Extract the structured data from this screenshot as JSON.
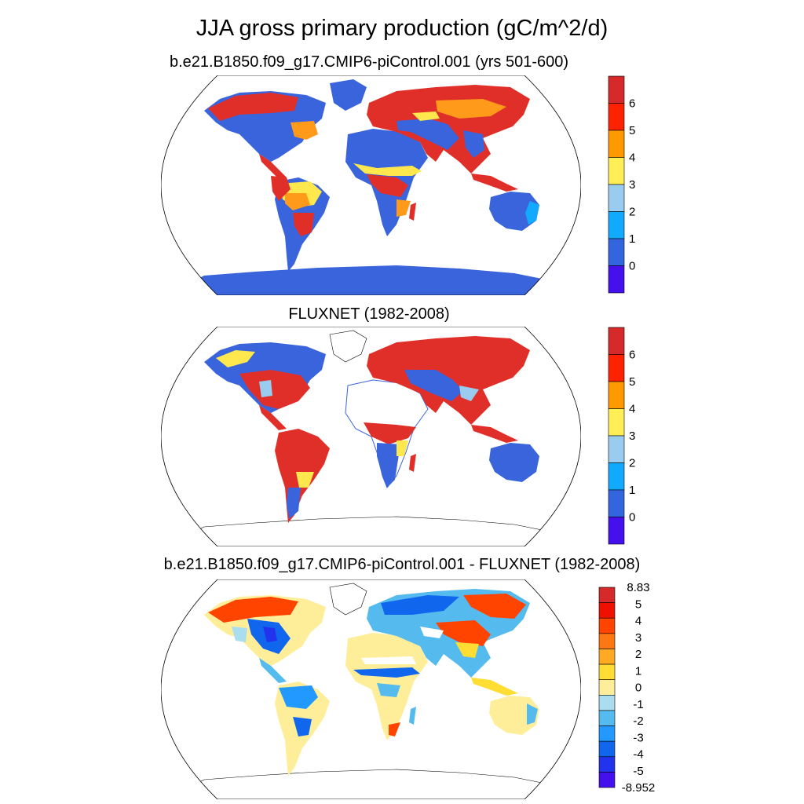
{
  "title": "JJA gross primary production (gC/m^2/d)",
  "panels": [
    {
      "id": "model",
      "title": "b.e21.B1850.f09_g17.CMIP6-piControl.001 (yrs 501-600)",
      "colorbar": {
        "labels": [
          "6",
          "5",
          "4",
          "3",
          "2",
          "1",
          "0"
        ],
        "colors": [
          "#d62a2a",
          "#ff2200",
          "#ff9900",
          "#ffee55",
          "#99ccee",
          "#11aaff",
          "#3366dd",
          "#4411ee"
        ]
      }
    },
    {
      "id": "obs",
      "title": "FLUXNET (1982-2008)",
      "colorbar": {
        "labels": [
          "6",
          "5",
          "4",
          "3",
          "2",
          "1",
          "0"
        ],
        "colors": [
          "#d62a2a",
          "#ff2200",
          "#ff9900",
          "#ffee55",
          "#99ccee",
          "#11aaff",
          "#3366dd",
          "#4411ee"
        ]
      }
    },
    {
      "id": "diff",
      "title": "b.e21.B1850.f09_g17.CMIP6-piControl.001 - FLUXNET (1982-2008)",
      "colorbar": {
        "labels": [
          "8.83",
          "5",
          "4",
          "3",
          "2",
          "1",
          "0",
          "-1",
          "-2",
          "-3",
          "-4",
          "-5",
          "-8.952"
        ],
        "colors": [
          "#d62a2a",
          "#ee1100",
          "#ff4400",
          "#ff7711",
          "#ffaa22",
          "#ffdd33",
          "#ffee99",
          "#aaddee",
          "#55bbee",
          "#2299ff",
          "#1166ee",
          "#2233ee",
          "#4411ee"
        ]
      }
    }
  ]
}
